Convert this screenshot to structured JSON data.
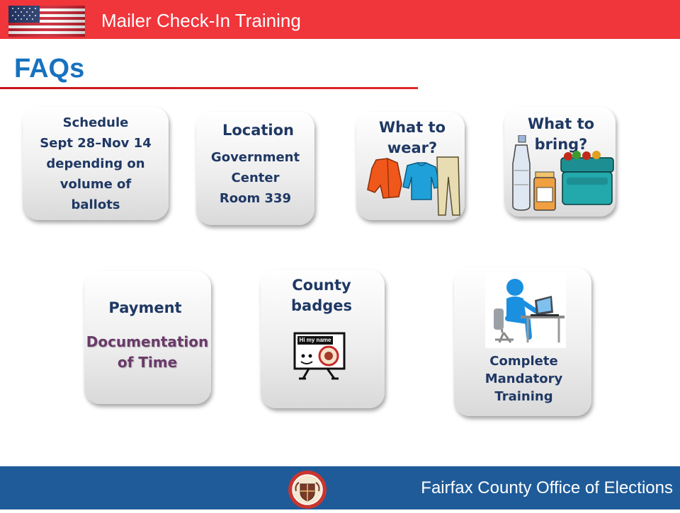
{
  "header": {
    "title": "Mailer Check-In Training"
  },
  "page": {
    "title": "FAQs"
  },
  "cards": {
    "schedule": {
      "lines": [
        "Schedule",
        "Sept 28–Nov 14",
        "depending on",
        "volume of",
        "ballots"
      ]
    },
    "location": {
      "heading": "Location",
      "lines": [
        "Government",
        "Center",
        "Room 339"
      ]
    },
    "wear": {
      "lines": [
        "What to",
        "wear?"
      ]
    },
    "bring": {
      "lines": [
        "What to",
        "bring?"
      ]
    },
    "payment": {
      "heading": "Payment",
      "lines": [
        "Documentation",
        "of Time"
      ]
    },
    "badges": {
      "lines": [
        "County",
        "badges"
      ],
      "sticker_text": "Hi my name is"
    },
    "training": {
      "lines": [
        "Complete",
        "Mandatory",
        "Training"
      ]
    }
  },
  "footer": {
    "text": "Fairfax County Office of Elections"
  },
  "colors": {
    "top_bar": "#f0353b",
    "title_blue": "#1772bf",
    "rule_red": "#c8141b",
    "card_text_navy": "#1f3864",
    "payment_purple": "#6a3a6a",
    "footer_bar": "#1f5b99"
  }
}
